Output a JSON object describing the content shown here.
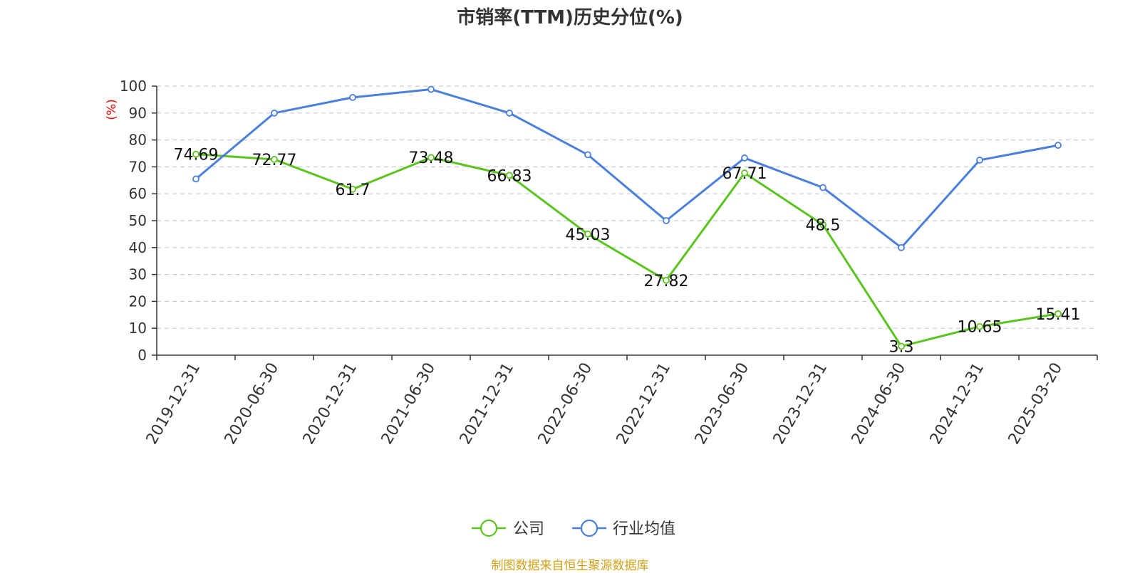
{
  "chart_data": {
    "type": "line",
    "title": "市销率(TTM)历史分位(%)",
    "ylabel": "(%)",
    "xlabel": "",
    "ylim": [
      0,
      100
    ],
    "yticks": [
      0,
      10,
      20,
      30,
      40,
      50,
      60,
      70,
      80,
      90,
      100
    ],
    "categories": [
      "2019-12-31",
      "2020-06-30",
      "2020-12-31",
      "2021-06-30",
      "2021-12-31",
      "2022-06-30",
      "2022-12-31",
      "2023-06-30",
      "2023-12-31",
      "2024-06-30",
      "2024-12-31",
      "2025-03-20"
    ],
    "series": [
      {
        "name": "公司",
        "color": "#5cc41e",
        "values": [
          74.69,
          72.77,
          61.7,
          73.48,
          66.83,
          45.03,
          27.82,
          67.71,
          48.5,
          3.3,
          10.65,
          15.41
        ],
        "labels": [
          "74.69",
          "72.77",
          "61.7",
          "73.48",
          "66.83",
          "45.03",
          "27.82",
          "67.71",
          "48.5",
          "3.3",
          "10.65",
          "15.41"
        ]
      },
      {
        "name": "行业均值",
        "color": "#4a7fdc",
        "values": [
          65.5,
          90,
          95.8,
          98.8,
          90,
          74.5,
          50,
          73.3,
          62.3,
          40,
          72.5,
          78
        ]
      }
    ],
    "grid": true,
    "legend_position": "bottom-center"
  },
  "source_text": "制图数据来自恒生聚源数据库"
}
